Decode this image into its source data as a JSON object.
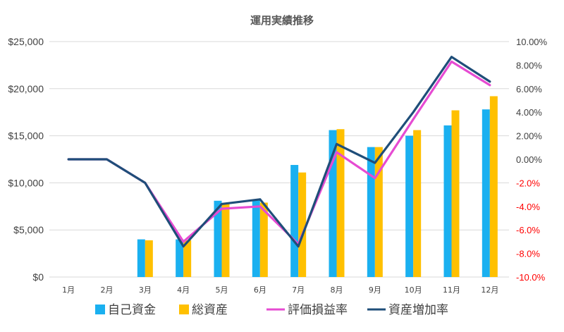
{
  "colors": {
    "own_funds": "#1ab0f0",
    "total_assets": "#ffc000",
    "valuation_rate": "#e64bd2",
    "asset_growth_rate": "#1f4e79",
    "negative_tick": "#ff0000",
    "gridline": "#d9d9d9"
  },
  "chart_data": {
    "type": "bar",
    "title": "運用実績推移",
    "categories": [
      "1月",
      "2月",
      "3月",
      "4月",
      "5月",
      "6月",
      "7月",
      "8月",
      "9月",
      "10月",
      "11月",
      "12月"
    ],
    "y_left": {
      "ylim": [
        0,
        25000
      ],
      "ticks": [
        0,
        5000,
        10000,
        15000,
        20000,
        25000
      ],
      "tick_labels": [
        "$0",
        "$5,000",
        "$10,000",
        "$15,000",
        "$20,000",
        "$25,000"
      ]
    },
    "y_right": {
      "ylim": [
        -10,
        10
      ],
      "ticks": [
        10,
        8,
        6,
        4,
        2,
        0,
        -2,
        -4,
        -6,
        -8,
        -10
      ],
      "tick_labels": [
        "10.00%",
        "8.00%",
        "6.00%",
        "4.00%",
        "2.00%",
        "0.00%",
        "-2.0%",
        "-4.0%",
        "-6.0%",
        "-8.0%",
        "-10.0%"
      ]
    },
    "series": [
      {
        "name": "自己資金",
        "kind": "bar",
        "axis": "left",
        "values": [
          0,
          0,
          4000,
          4000,
          8100,
          8200,
          11900,
          15600,
          13800,
          15000,
          16100,
          17800
        ]
      },
      {
        "name": "総資産",
        "kind": "bar",
        "axis": "left",
        "values": [
          0,
          0,
          3900,
          3900,
          7800,
          7900,
          11100,
          15700,
          13800,
          15600,
          17700,
          19200
        ]
      },
      {
        "name": "評価損益率",
        "kind": "line",
        "axis": "right",
        "values": [
          0.0,
          0.0,
          -2.0,
          -7.0,
          -4.2,
          -4.0,
          -7.2,
          0.6,
          -1.6,
          3.4,
          8.3,
          6.3
        ]
      },
      {
        "name": "資産増加率",
        "kind": "line",
        "axis": "right",
        "values": [
          0.0,
          0.0,
          -2.0,
          -7.4,
          -3.8,
          -3.4,
          -7.4,
          1.3,
          -0.3,
          4.0,
          8.7,
          6.6
        ]
      }
    ],
    "legend": "bottom",
    "grid": true
  }
}
